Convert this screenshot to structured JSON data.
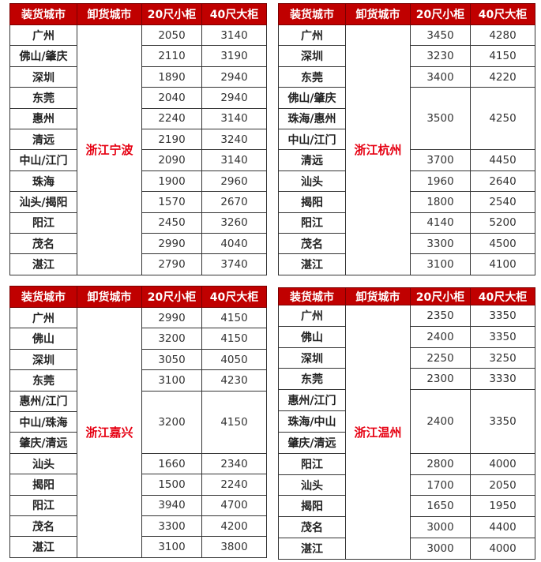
{
  "headers": [
    "装货城市",
    "卸货城市",
    "20尺小柜",
    "40尺大柜"
  ],
  "accent_color": "#c00000",
  "destination_color": "#e60012",
  "tables": [
    {
      "destination": "浙江宁波",
      "groups": [
        {
          "cities": [
            "广州"
          ],
          "p20": "2050",
          "p40": "3140"
        },
        {
          "cities": [
            "佛山/肇庆"
          ],
          "p20": "2110",
          "p40": "3190"
        },
        {
          "cities": [
            "深圳"
          ],
          "p20": "1890",
          "p40": "2940"
        },
        {
          "cities": [
            "东莞"
          ],
          "p20": "2040",
          "p40": "2940"
        },
        {
          "cities": [
            "惠州"
          ],
          "p20": "2240",
          "p40": "3140"
        },
        {
          "cities": [
            "清远"
          ],
          "p20": "2190",
          "p40": "3240"
        },
        {
          "cities": [
            "中山/江门"
          ],
          "p20": "2090",
          "p40": "3140"
        },
        {
          "cities": [
            "珠海"
          ],
          "p20": "1900",
          "p40": "2960"
        },
        {
          "cities": [
            "汕头/揭阳"
          ],
          "p20": "1570",
          "p40": "2670"
        },
        {
          "cities": [
            "阳江"
          ],
          "p20": "2450",
          "p40": "3260"
        },
        {
          "cities": [
            "茂名"
          ],
          "p20": "2990",
          "p40": "4040"
        },
        {
          "cities": [
            "湛江"
          ],
          "p20": "2790",
          "p40": "3740"
        }
      ]
    },
    {
      "destination": "浙江杭州",
      "groups": [
        {
          "cities": [
            "广州"
          ],
          "p20": "3450",
          "p40": "4280"
        },
        {
          "cities": [
            "深圳"
          ],
          "p20": "3230",
          "p40": "4150"
        },
        {
          "cities": [
            "东莞"
          ],
          "p20": "3400",
          "p40": "4220"
        },
        {
          "cities": [
            "佛山/肇庆",
            "珠海/惠州",
            "中山/江门"
          ],
          "p20": "3500",
          "p40": "4250"
        },
        {
          "cities": [
            "清远"
          ],
          "p20": "3700",
          "p40": "4450"
        },
        {
          "cities": [
            "汕头"
          ],
          "p20": "1960",
          "p40": "2640"
        },
        {
          "cities": [
            "揭阳"
          ],
          "p20": "1800",
          "p40": "2540"
        },
        {
          "cities": [
            "阳江"
          ],
          "p20": "4140",
          "p40": "5200"
        },
        {
          "cities": [
            "茂名"
          ],
          "p20": "3300",
          "p40": "4500"
        },
        {
          "cities": [
            "湛江"
          ],
          "p20": "3100",
          "p40": "4100"
        }
      ]
    },
    {
      "destination": "浙江嘉兴",
      "groups": [
        {
          "cities": [
            "广州"
          ],
          "p20": "2990",
          "p40": "4150"
        },
        {
          "cities": [
            "佛山"
          ],
          "p20": "3200",
          "p40": "4150"
        },
        {
          "cities": [
            "深圳"
          ],
          "p20": "3050",
          "p40": "4050"
        },
        {
          "cities": [
            "东莞"
          ],
          "p20": "3100",
          "p40": "4230"
        },
        {
          "cities": [
            "惠州/江门",
            "中山/珠海",
            "肇庆/清远"
          ],
          "p20": "3200",
          "p40": "4150"
        },
        {
          "cities": [
            "汕头"
          ],
          "p20": "1660",
          "p40": "2340"
        },
        {
          "cities": [
            "揭阳"
          ],
          "p20": "1500",
          "p40": "2240"
        },
        {
          "cities": [
            "阳江"
          ],
          "p20": "3940",
          "p40": "4700"
        },
        {
          "cities": [
            "茂名"
          ],
          "p20": "3300",
          "p40": "4200"
        },
        {
          "cities": [
            "湛江"
          ],
          "p20": "3100",
          "p40": "3800"
        }
      ]
    },
    {
      "destination": "浙江温州",
      "groups": [
        {
          "cities": [
            "广州"
          ],
          "p20": "2350",
          "p40": "3350"
        },
        {
          "cities": [
            "佛山"
          ],
          "p20": "2400",
          "p40": "3350"
        },
        {
          "cities": [
            "深圳"
          ],
          "p20": "2250",
          "p40": "3250"
        },
        {
          "cities": [
            "东莞"
          ],
          "p20": "2300",
          "p40": "3330"
        },
        {
          "cities": [
            "惠州/江门",
            "珠海/中山",
            "肇庆/清远"
          ],
          "p20": "2400",
          "p40": "3350"
        },
        {
          "cities": [
            "阳江"
          ],
          "p20": "2800",
          "p40": "4000"
        },
        {
          "cities": [
            "汕头"
          ],
          "p20": "1700",
          "p40": "2050"
        },
        {
          "cities": [
            "揭阳"
          ],
          "p20": "1650",
          "p40": "1950"
        },
        {
          "cities": [
            "茂名"
          ],
          "p20": "3000",
          "p40": "4400"
        },
        {
          "cities": [
            "湛江"
          ],
          "p20": "3000",
          "p40": "4000"
        }
      ]
    }
  ]
}
